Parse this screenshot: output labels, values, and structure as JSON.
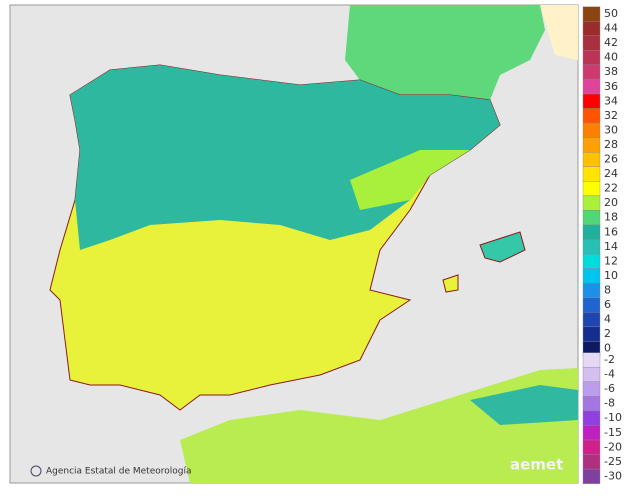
{
  "credit": "Agencia Estatal de Meteorología",
  "logo": "aemet",
  "legend": [
    {
      "label": "50",
      "color": "#8b4513"
    },
    {
      "label": "44",
      "color": "#9b2c2c"
    },
    {
      "label": "42",
      "color": "#aa3040"
    },
    {
      "label": "40",
      "color": "#bb3355"
    },
    {
      "label": "38",
      "color": "#cc3a70"
    },
    {
      "label": "36",
      "color": "#e0449a"
    },
    {
      "label": "34",
      "color": "#ff0000"
    },
    {
      "label": "32",
      "color": "#ff5500"
    },
    {
      "label": "30",
      "color": "#ff7f00"
    },
    {
      "label": "28",
      "color": "#ffa000"
    },
    {
      "label": "26",
      "color": "#ffc000"
    },
    {
      "label": "24",
      "color": "#ffe400"
    },
    {
      "label": "22",
      "color": "#ffff00"
    },
    {
      "label": "20",
      "color": "#a8f03c"
    },
    {
      "label": "18",
      "color": "#50d878"
    },
    {
      "label": "16",
      "color": "#20b09c"
    },
    {
      "label": "14",
      "color": "#28c0b4"
    },
    {
      "label": "12",
      "color": "#00dcdc"
    },
    {
      "label": "10",
      "color": "#00c4f0"
    },
    {
      "label": "8",
      "color": "#1e90ec"
    },
    {
      "label": "6",
      "color": "#2064d0"
    },
    {
      "label": "4",
      "color": "#1e46b0"
    },
    {
      "label": "2",
      "color": "#142e90"
    },
    {
      "label": "0",
      "color": "#0c1a64"
    },
    {
      "label": "-2",
      "color": "#e4d8f4"
    },
    {
      "label": "-4",
      "color": "#d4c0f0"
    },
    {
      "label": "-6",
      "color": "#bc9cec"
    },
    {
      "label": "-8",
      "color": "#a476e4"
    },
    {
      "label": "-10",
      "color": "#9040e0"
    },
    {
      "label": "-15",
      "color": "#c020c0"
    },
    {
      "label": "-20",
      "color": "#d0208c"
    },
    {
      "label": "-25",
      "color": "#b03080"
    },
    {
      "label": "-30",
      "color": "#8040a0"
    }
  ]
}
